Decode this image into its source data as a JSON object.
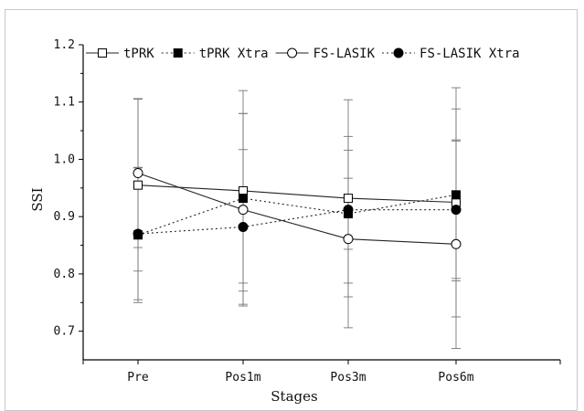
{
  "chart_data": {
    "type": "line",
    "xlabel": "Stages",
    "ylabel": "SSI",
    "categories": [
      "Pre",
      "Pos1m",
      "Pos3m",
      "Pos6m"
    ],
    "ylim": [
      0.65,
      1.2
    ],
    "yticks": [
      "0.7",
      "0.8",
      "0.9",
      "1.0",
      "1.1",
      "1.2"
    ],
    "legend_position": "top",
    "grid": false,
    "series": [
      {
        "name": "tPRK",
        "marker": "open-square",
        "line": "solid",
        "values": [
          0.955,
          0.945,
          0.932,
          0.925
        ],
        "error": [
          0.15,
          0.175,
          0.172,
          0.2
        ]
      },
      {
        "name": "tPRK Xtra",
        "marker": "filled-square",
        "line": "dotted",
        "values": [
          0.868,
          0.932,
          0.905,
          0.938
        ],
        "error": [
          0.118,
          0.148,
          0.062,
          0.15
        ]
      },
      {
        "name": "FS-LASIK",
        "marker": "open-circle",
        "line": "solid",
        "values": [
          0.976,
          0.912,
          0.861,
          0.852
        ],
        "error": [
          0.13,
          0.168,
          0.155,
          0.182
        ]
      },
      {
        "name": "FS-LASIK Xtra",
        "marker": "filled-circle",
        "line": "dotted",
        "values": [
          0.87,
          0.882,
          0.912,
          0.912
        ],
        "error": [
          0.115,
          0.135,
          0.128,
          0.12
        ]
      }
    ]
  }
}
